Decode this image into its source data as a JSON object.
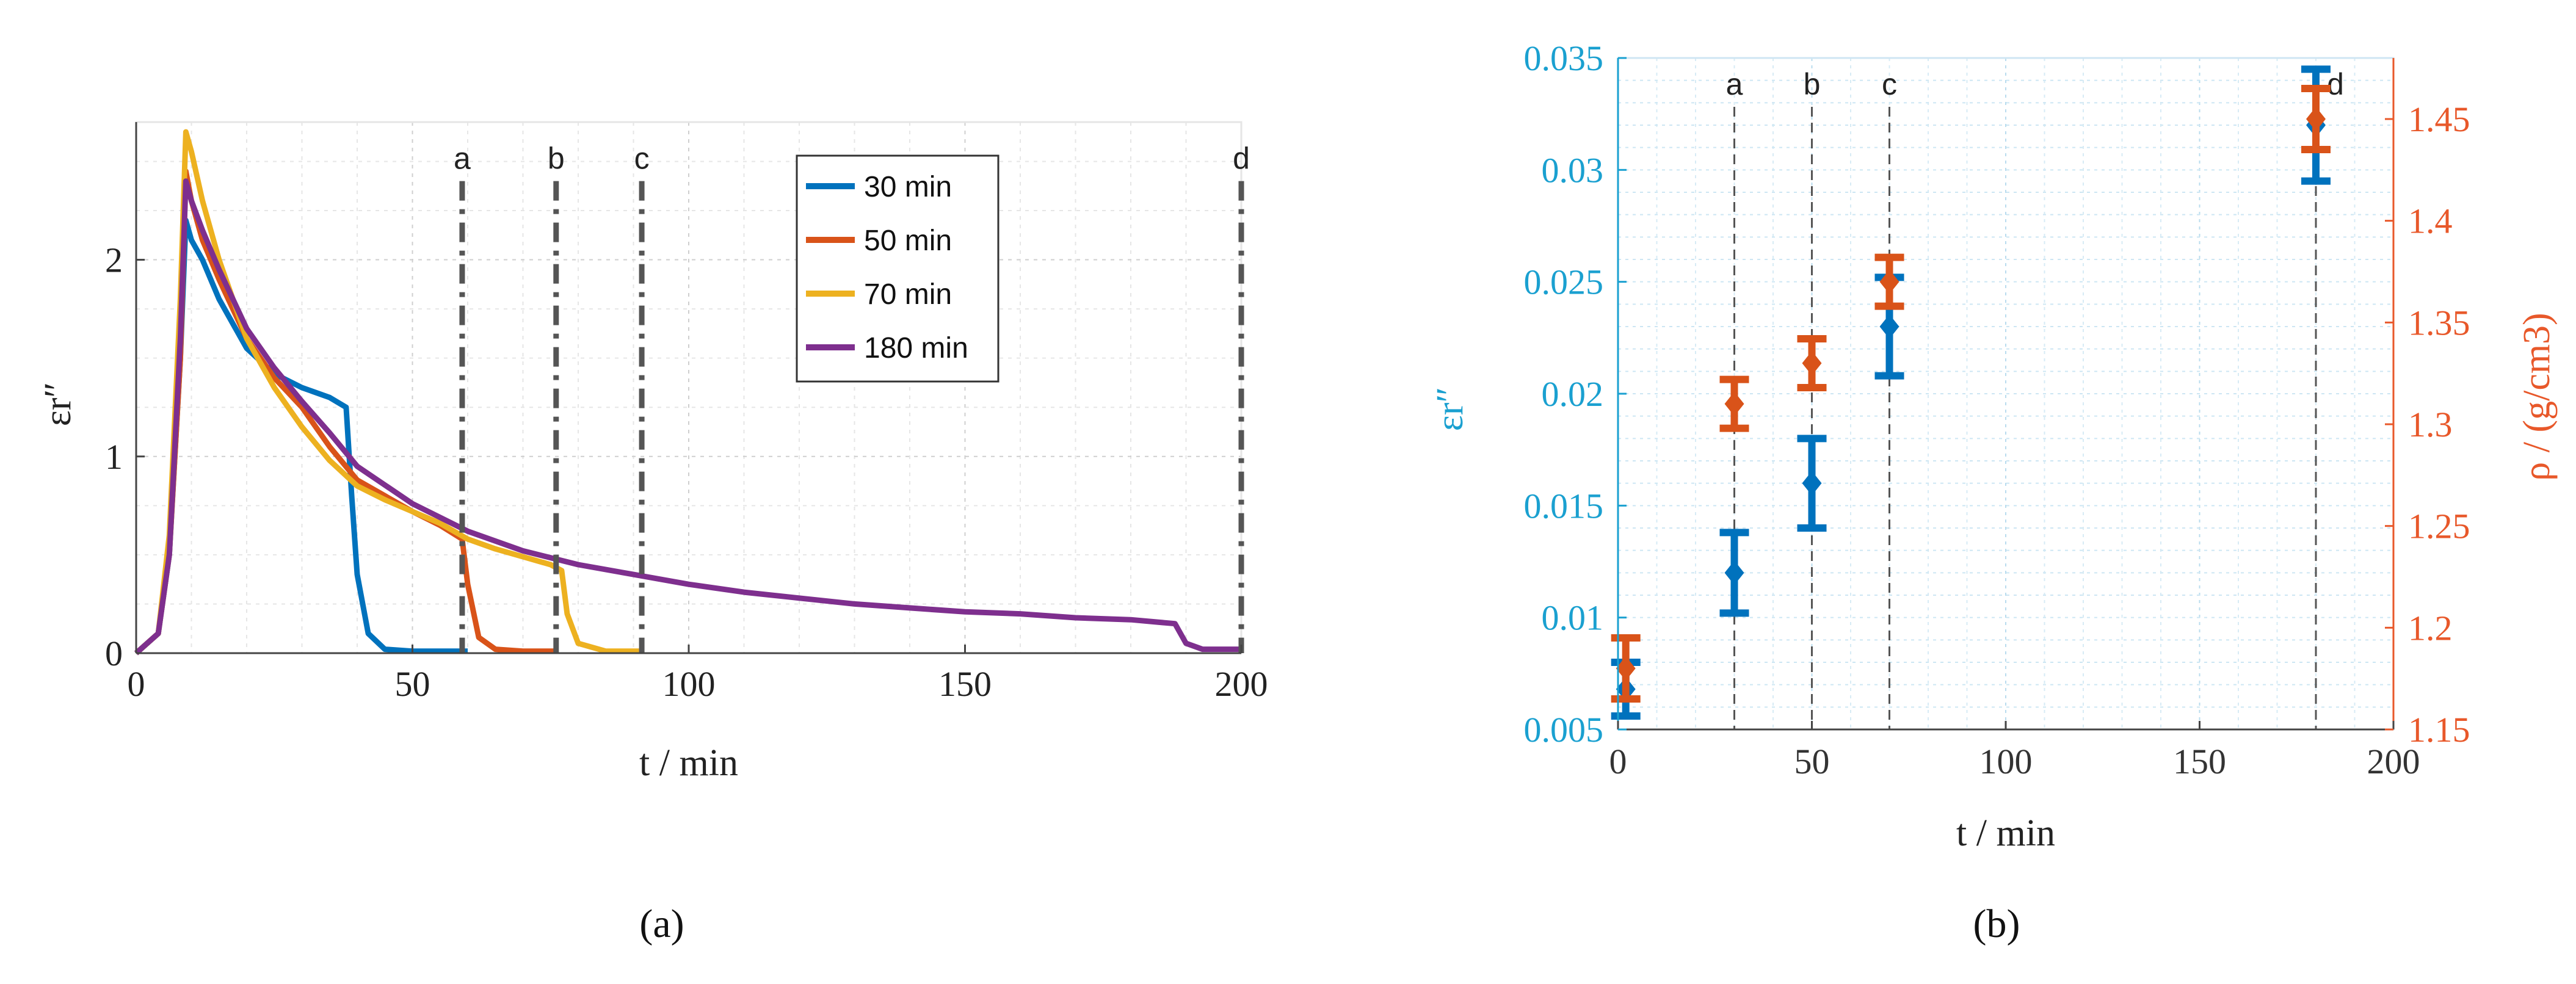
{
  "colors": {
    "blue": "#0072BD",
    "orange": "#D95319",
    "yellow": "#EDB120",
    "purple": "#7E2F8E",
    "grid": "#d9d9d9",
    "vline": "#555555",
    "left_axis_b": "#1aa0d0",
    "right_axis_b": "#e8582a"
  },
  "panels": {
    "a": {
      "label": "(a)"
    },
    "b": {
      "label": "(b)"
    }
  },
  "chart_data": [
    {
      "type": "line",
      "panel": "a",
      "xlabel": "t / min",
      "ylabel": "εr″",
      "xlim": [
        0,
        200
      ],
      "ylim": [
        0,
        2.7
      ],
      "xticks": [
        "0",
        "50",
        "100",
        "150",
        "200"
      ],
      "yticks": [
        "0",
        "1",
        "2"
      ],
      "grid": true,
      "legend_position": "top-right",
      "vlines": [
        {
          "x": 59,
          "label": "a"
        },
        {
          "x": 76,
          "label": "b"
        },
        {
          "x": 91.5,
          "label": "c"
        },
        {
          "x": 200,
          "label": "d"
        }
      ],
      "series": [
        {
          "name": "30 min",
          "color": "#0072BD",
          "x": [
            0,
            4,
            6,
            8,
            9,
            10,
            12,
            15,
            20,
            25,
            30,
            35,
            38,
            39,
            40,
            42,
            45,
            50,
            60
          ],
          "y": [
            0,
            0.1,
            0.5,
            1.5,
            2.2,
            2.1,
            2.0,
            1.8,
            1.55,
            1.42,
            1.35,
            1.3,
            1.25,
            0.8,
            0.4,
            0.1,
            0.02,
            0.01,
            0.01
          ]
        },
        {
          "name": "50 min",
          "color": "#D95319",
          "x": [
            0,
            4,
            6,
            8,
            9,
            10,
            12,
            15,
            20,
            25,
            30,
            35,
            40,
            45,
            50,
            55,
            59,
            60,
            62,
            65,
            70,
            76
          ],
          "y": [
            0,
            0.1,
            0.5,
            1.5,
            2.45,
            2.3,
            2.1,
            1.9,
            1.6,
            1.4,
            1.25,
            1.05,
            0.88,
            0.8,
            0.72,
            0.65,
            0.58,
            0.35,
            0.08,
            0.02,
            0.01,
            0.01
          ]
        },
        {
          "name": "70 min",
          "color": "#EDB120",
          "x": [
            0,
            4,
            6,
            8,
            9,
            10,
            12,
            15,
            20,
            25,
            30,
            35,
            40,
            45,
            50,
            55,
            60,
            65,
            70,
            75,
            77,
            78,
            80,
            85,
            91
          ],
          "y": [
            0,
            0.1,
            0.6,
            1.8,
            2.65,
            2.55,
            2.3,
            2.0,
            1.6,
            1.35,
            1.15,
            0.98,
            0.85,
            0.78,
            0.72,
            0.66,
            0.58,
            0.53,
            0.49,
            0.45,
            0.42,
            0.2,
            0.05,
            0.01,
            0.01
          ]
        },
        {
          "name": "180 min",
          "color": "#7E2F8E",
          "x": [
            0,
            4,
            6,
            8,
            9,
            10,
            12,
            15,
            20,
            25,
            30,
            35,
            40,
            50,
            60,
            70,
            80,
            90,
            100,
            110,
            120,
            130,
            140,
            150,
            160,
            170,
            180,
            188,
            190,
            193,
            200
          ],
          "y": [
            0,
            0.1,
            0.5,
            1.6,
            2.4,
            2.3,
            2.15,
            1.95,
            1.65,
            1.45,
            1.28,
            1.12,
            0.95,
            0.76,
            0.62,
            0.52,
            0.45,
            0.4,
            0.35,
            0.31,
            0.28,
            0.25,
            0.23,
            0.21,
            0.2,
            0.18,
            0.17,
            0.15,
            0.05,
            0.02,
            0.02
          ]
        }
      ]
    },
    {
      "type": "scatter",
      "panel": "b",
      "xlabel": "t / min",
      "ylabel_left": "εr″",
      "ylabel_right": "ρ / (g/cm3)",
      "xlim": [
        0,
        200
      ],
      "ylim_left": [
        0.005,
        0.035
      ],
      "ylim_right": [
        1.15,
        1.48
      ],
      "xticks": [
        "0",
        "50",
        "100",
        "150",
        "200"
      ],
      "yticks_left": [
        "0.005",
        "0.01",
        "0.015",
        "0.02",
        "0.025",
        "0.03",
        "0.035"
      ],
      "yticks_right": [
        "1.15",
        "1.2",
        "1.25",
        "1.3",
        "1.35",
        "1.4",
        "1.45"
      ],
      "grid": true,
      "vlines": [
        {
          "x": 30,
          "label": "a"
        },
        {
          "x": 50,
          "label": "b"
        },
        {
          "x": 70,
          "label": "c"
        },
        {
          "x": 180,
          "label": "d"
        }
      ],
      "series": [
        {
          "axis": "left",
          "color": "#0072BD",
          "x": [
            2,
            30,
            50,
            70,
            180
          ],
          "y": [
            0.0068,
            0.012,
            0.016,
            0.023,
            0.032
          ],
          "err": [
            0.0012,
            0.0018,
            0.002,
            0.0022,
            0.0025
          ]
        },
        {
          "axis": "right",
          "color": "#D95319",
          "x": [
            2,
            30,
            50,
            70,
            180
          ],
          "y": [
            1.18,
            1.31,
            1.33,
            1.37,
            1.45
          ],
          "err": [
            0.015,
            0.012,
            0.012,
            0.012,
            0.015
          ]
        }
      ]
    }
  ]
}
